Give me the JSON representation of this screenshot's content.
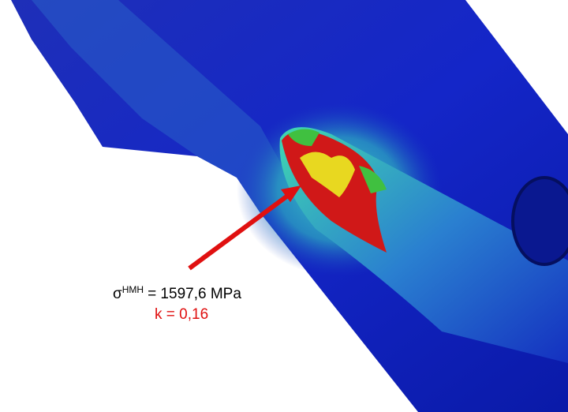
{
  "annotation": {
    "symbol": "σ",
    "superscript": "HMH",
    "stress": "= 1597,6 MPa",
    "factor": "k = 0,16"
  }
}
